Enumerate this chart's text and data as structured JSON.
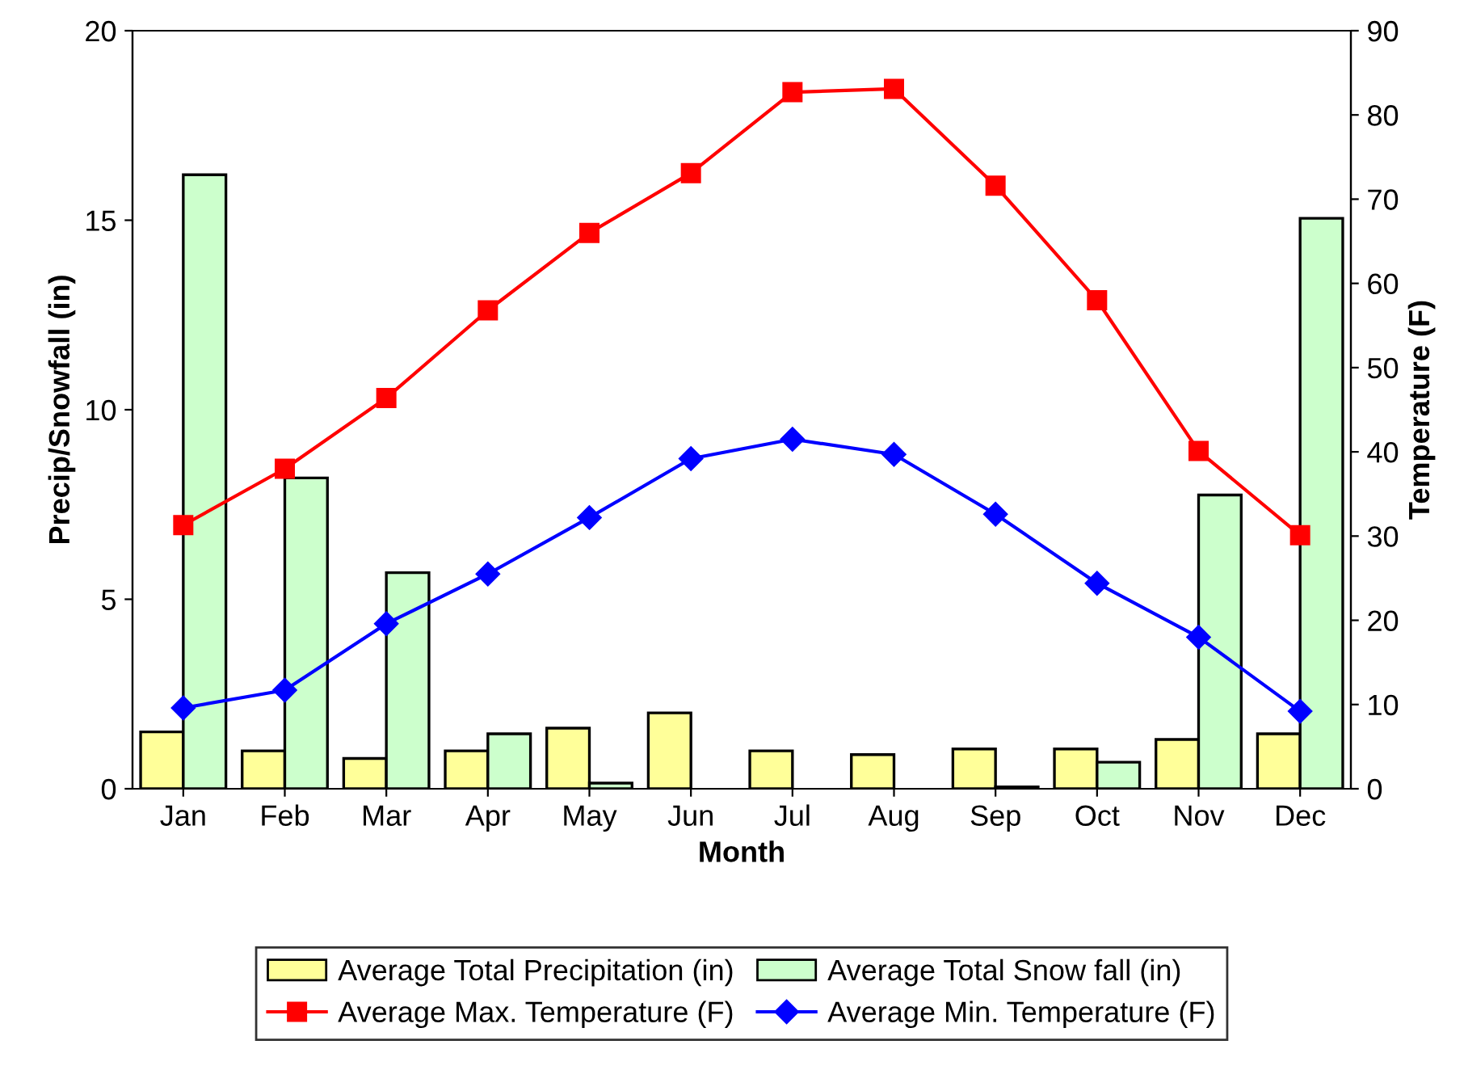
{
  "chart_data": {
    "type": "bar",
    "xlabel": "Month",
    "ylabel": "Precip/Snowfall (in)",
    "y2label": "Temperature (F)",
    "categories": [
      "Jan",
      "Feb",
      "Mar",
      "Apr",
      "May",
      "Jun",
      "Jul",
      "Aug",
      "Sep",
      "Oct",
      "Nov",
      "Dec"
    ],
    "series": [
      {
        "name": "Average Total Precipitation (in)",
        "color": "#ffff99",
        "values": [
          1.5,
          1.0,
          0.8,
          1.0,
          1.6,
          2.0,
          1.0,
          0.9,
          1.05,
          1.05,
          1.3,
          1.45
        ]
      },
      {
        "name": "Average Total Snow fall (in)",
        "color": "#ccffcc",
        "values": [
          16.2,
          8.2,
          5.7,
          1.45,
          0.15,
          0,
          0,
          0,
          0.05,
          0.7,
          7.75,
          15.05
        ]
      },
      {
        "name": "Average Max. Temperature (F)",
        "type": "line",
        "axis": "y2",
        "marker": "square",
        "color": "#ff0000",
        "values": [
          31.3,
          38,
          46.4,
          56.8,
          66,
          73.1,
          82.7,
          83.1,
          71.6,
          58,
          40.1,
          30.1
        ]
      },
      {
        "name": "Average Min. Temperature (F)",
        "type": "line",
        "axis": "y2",
        "marker": "diamond",
        "color": "#0000ff",
        "values": [
          9.6,
          11.7,
          19.6,
          25.5,
          32.2,
          39.2,
          41.5,
          39.7,
          32.6,
          24.4,
          18,
          9.2
        ]
      }
    ],
    "ylim": [
      0,
      20
    ],
    "yticks": [
      0,
      5,
      10,
      15,
      20
    ],
    "y2lim": [
      0,
      90
    ],
    "y2ticks": [
      0,
      10,
      20,
      30,
      40,
      50,
      60,
      70,
      80,
      90
    ],
    "grid": false,
    "legend": "bottom"
  }
}
